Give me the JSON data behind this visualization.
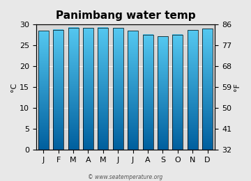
{
  "title": "Panimbang water temp",
  "months": [
    "J",
    "F",
    "M",
    "A",
    "M",
    "J",
    "J",
    "A",
    "S",
    "O",
    "N",
    "D"
  ],
  "values_c": [
    28.5,
    28.8,
    29.3,
    29.2,
    29.3,
    29.2,
    28.5,
    27.6,
    27.2,
    27.6,
    28.7,
    29.0
  ],
  "ylim_c": [
    0,
    30
  ],
  "yticks_c": [
    0,
    5,
    10,
    15,
    20,
    25,
    30
  ],
  "yticks_f": [
    32,
    41,
    50,
    59,
    68,
    77,
    86
  ],
  "ylabel_left": "°C",
  "ylabel_right": "°F",
  "bar_top_color": "#55c8f0",
  "bar_bottom_color": "#005f9e",
  "bar_edge_color": "#000000",
  "bg_color": "#e8e8e8",
  "plot_bg_color": "#d8d8d8",
  "title_fontsize": 11,
  "axis_fontsize": 8,
  "label_fontsize": 8,
  "watermark": "© www.seatemperature.org"
}
